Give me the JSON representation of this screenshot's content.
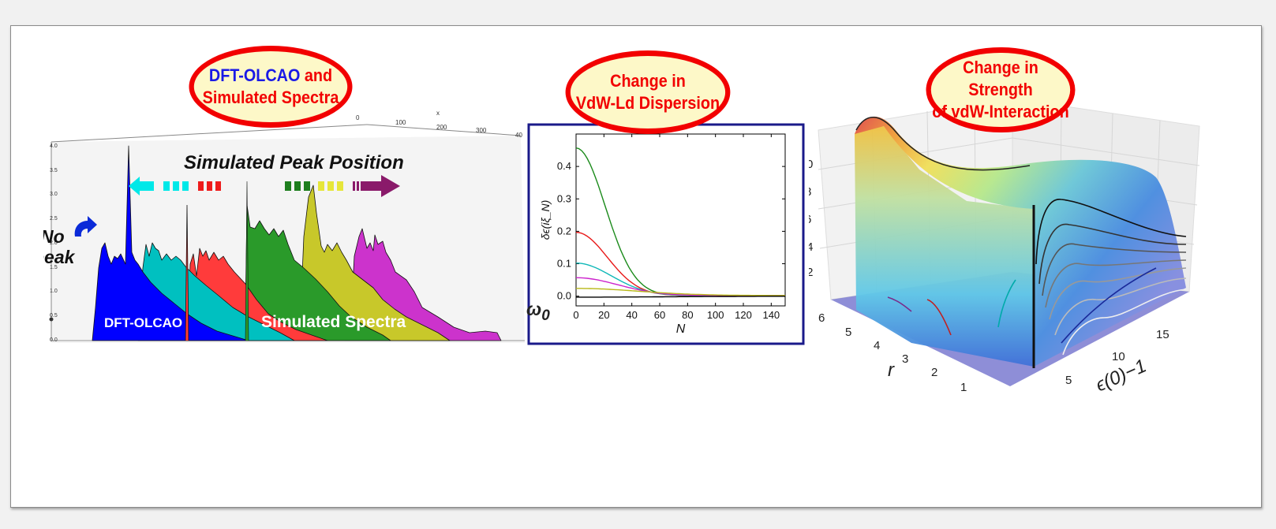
{
  "callouts": {
    "spectra": {
      "prefix": "DFT-OLCAO",
      "line1_rest": " and",
      "line2": "Simulated  Spectra"
    },
    "dispersion": {
      "line1": "Change in",
      "line2": "VdW-Ld Dispersion"
    },
    "strength": {
      "line1": "Change in Strength",
      "line2": "of vdW-Interaction"
    }
  },
  "spectra_panel": {
    "title": "Simulated Peak Position",
    "no_peak": {
      "line1": "No",
      "line2": "peak"
    },
    "dft_label": "DFT-OLCAO",
    "sim_label": "Simulated Spectra",
    "x_axis": {
      "label": "x",
      "ticks": [
        "0",
        "100",
        "200",
        "300",
        "40"
      ]
    },
    "y_ticks": [
      "0.0",
      "0.5",
      "1.0",
      "1.5",
      "2.0",
      "2.5",
      "3.0",
      "3.5",
      "4.0"
    ],
    "colors": [
      "#0000ff",
      "#00c0c0",
      "#ff3b3b",
      "#2a9a2a",
      "#c8c82a",
      "#cc33cc"
    ]
  },
  "omega_label": "ω",
  "omega_sub": "0",
  "chart_data": {
    "type": "line",
    "xlabel": "N",
    "ylabel": "δϵ(iξ_N)",
    "xlim": [
      0,
      150
    ],
    "ylim": [
      -0.03,
      0.5
    ],
    "x_ticks": [
      "0",
      "20",
      "40",
      "60",
      "80",
      "100",
      "120",
      "140"
    ],
    "y_ticks": [
      "0.0",
      "0.1",
      "0.2",
      "0.3",
      "0.4"
    ],
    "series": [
      {
        "color": "#1a8a1a",
        "a": 0.455,
        "n0": 28
      },
      {
        "color": "#e81818",
        "a": 0.195,
        "n0": 30
      },
      {
        "color": "#10b8b8",
        "a": 0.1,
        "n0": 34
      },
      {
        "color": "#cc22cc",
        "a": 0.055,
        "n0": 40
      },
      {
        "color": "#b8b818",
        "a": 0.022,
        "n0": 60
      },
      {
        "color": "#000000",
        "a": -0.003,
        "n0": 90
      }
    ]
  },
  "surface_panel": {
    "z_ticks": [
      "0",
      "8",
      "6",
      ".4",
      ".2"
    ],
    "r_label": "r",
    "r_ticks": [
      "6",
      "5",
      "4",
      "3",
      "2",
      "1"
    ],
    "e_label": "ϵ(0)−1",
    "e_ticks": [
      "5",
      "10",
      "15"
    ]
  }
}
